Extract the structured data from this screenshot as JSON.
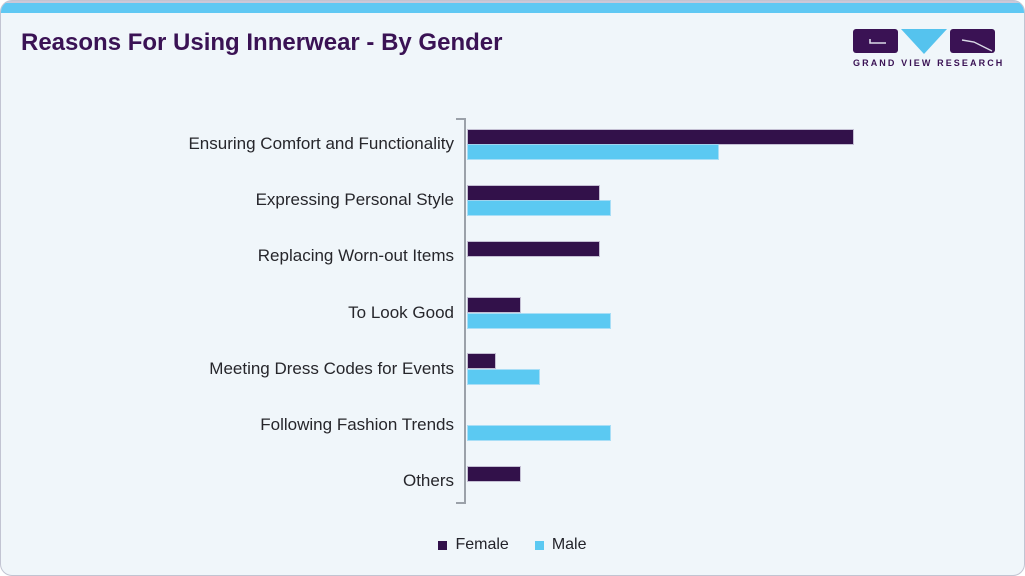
{
  "page": {
    "title": "Reasons For Using Innerwear - By Gender"
  },
  "logo": {
    "name": "grand-view-research-logo",
    "text": "GRAND VIEW RESEARCH"
  },
  "colors": {
    "card_background": "#f0f6fa",
    "top_strip": "#5fc8f3",
    "title_purple": "#3a1254",
    "female_bar": "#32114a",
    "male_bar": "#5bc9f2",
    "axis_gray": "#9ba1a9",
    "label_text": "#26262b"
  },
  "chart_data": {
    "type": "bar",
    "orientation": "horizontal",
    "title": "Reasons For Using Innerwear - By Gender",
    "xlabel": "",
    "ylabel": "",
    "categories": [
      "Ensuring Comfort and Functionality",
      "Expressing Personal Style",
      "Replacing Worn-out Items",
      "To Look Good",
      "Meeting Dress Codes for Events",
      "Following Fashion Trends",
      "Others"
    ],
    "series": [
      {
        "name": "Female",
        "color": "#32114a",
        "values": [
          100,
          34,
          34,
          13.5,
          7,
          0,
          13.5
        ]
      },
      {
        "name": "Male",
        "color": "#5bc9f2",
        "values": [
          65,
          37,
          0,
          37,
          18.5,
          37,
          0
        ]
      }
    ],
    "value_unit": "relative index (no numeric axis shown; 100 = longest bar)",
    "xlim": [
      0,
      144
    ],
    "grid": false,
    "legend_position": "bottom-center",
    "legend": [
      "Female",
      "Male"
    ]
  }
}
